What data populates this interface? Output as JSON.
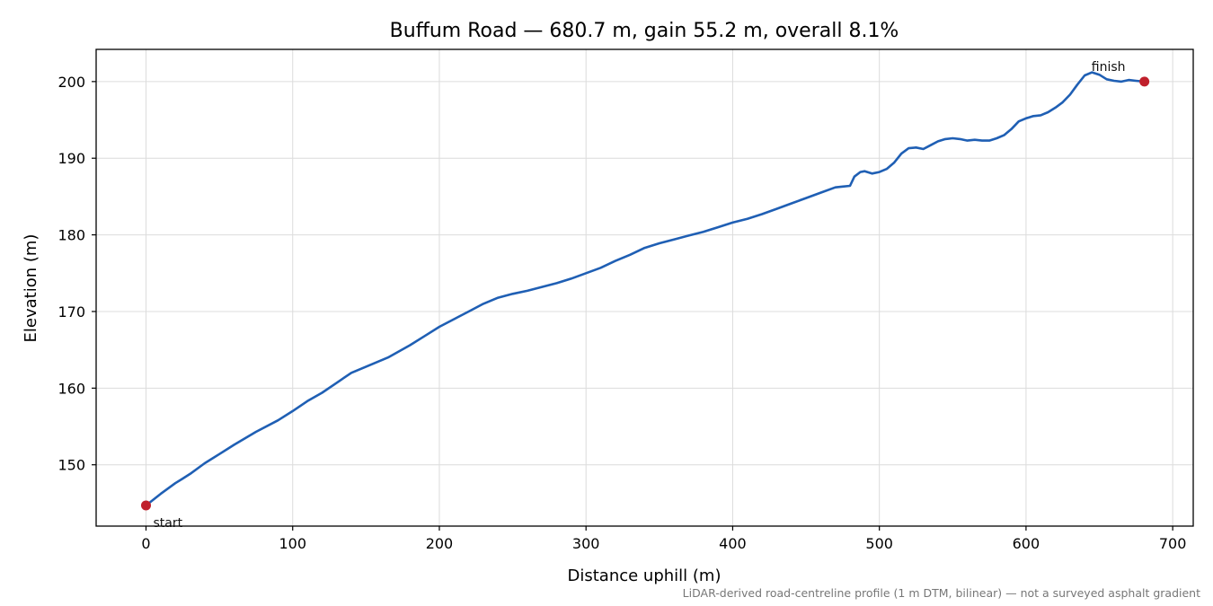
{
  "chart_data": {
    "type": "line",
    "title": "Buffum Road — 680.7 m, gain 55.2 m, overall 8.1%",
    "xlabel": "Distance uphill (m)",
    "ylabel": "Elevation (m)",
    "xlim": [
      -34,
      714
    ],
    "ylim": [
      142,
      204.2
    ],
    "xticks": [
      0,
      100,
      200,
      300,
      400,
      500,
      600,
      700
    ],
    "yticks": [
      150,
      160,
      170,
      180,
      190,
      200
    ],
    "grid": true,
    "line_color": "#1f5fb4",
    "marker_color": "#c0202c",
    "series": [
      {
        "x": [
          0,
          10,
          20,
          25,
          30,
          40,
          50,
          60,
          75,
          90,
          100,
          110,
          120,
          130,
          140,
          150,
          165,
          180,
          190,
          200,
          210,
          220,
          230,
          240,
          250,
          260,
          270,
          280,
          290,
          300,
          310,
          320,
          330,
          340,
          350,
          360,
          370,
          380,
          390,
          400,
          410,
          420,
          430,
          440,
          450,
          460,
          470,
          475,
          480,
          483,
          487,
          490,
          495,
          500,
          505,
          510,
          515,
          520,
          525,
          530,
          535,
          540,
          545,
          550,
          555,
          560,
          565,
          570,
          575,
          580,
          585,
          590,
          595,
          600,
          605,
          610,
          615,
          620,
          625,
          630,
          635,
          640,
          645,
          650,
          655,
          660,
          665,
          670,
          675,
          680.7
        ],
        "y": [
          144.7,
          146.2,
          147.6,
          148.2,
          148.8,
          150.2,
          151.4,
          152.6,
          154.3,
          155.8,
          157.0,
          158.3,
          159.4,
          160.7,
          162.0,
          162.8,
          164.0,
          165.6,
          166.8,
          168.0,
          169.0,
          170.0,
          171.0,
          171.8,
          172.3,
          172.7,
          173.2,
          173.7,
          174.3,
          175.0,
          175.7,
          176.6,
          177.4,
          178.3,
          178.9,
          179.4,
          179.9,
          180.4,
          181.0,
          181.6,
          182.1,
          182.7,
          183.4,
          184.1,
          184.8,
          185.5,
          186.2,
          186.3,
          186.4,
          187.6,
          188.2,
          188.3,
          188.0,
          188.2,
          188.6,
          189.4,
          190.6,
          191.3,
          191.4,
          191.2,
          191.7,
          192.2,
          192.5,
          192.6,
          192.5,
          192.3,
          192.4,
          192.3,
          192.3,
          192.6,
          193.0,
          193.8,
          194.8,
          195.2,
          195.5,
          195.6,
          196.0,
          196.6,
          197.3,
          198.3,
          199.6,
          200.8,
          201.2,
          200.9,
          200.3,
          200.1,
          200.0,
          200.2,
          200.1,
          200.0
        ]
      }
    ],
    "annotations": [
      {
        "text": "start",
        "x": 0,
        "y": 144.7
      },
      {
        "text": "finish",
        "x": 680.7,
        "y": 200.0
      }
    ],
    "footnote": "LiDAR-derived road-centreline profile (1 m DTM, bilinear) — not a surveyed asphalt gradient"
  }
}
